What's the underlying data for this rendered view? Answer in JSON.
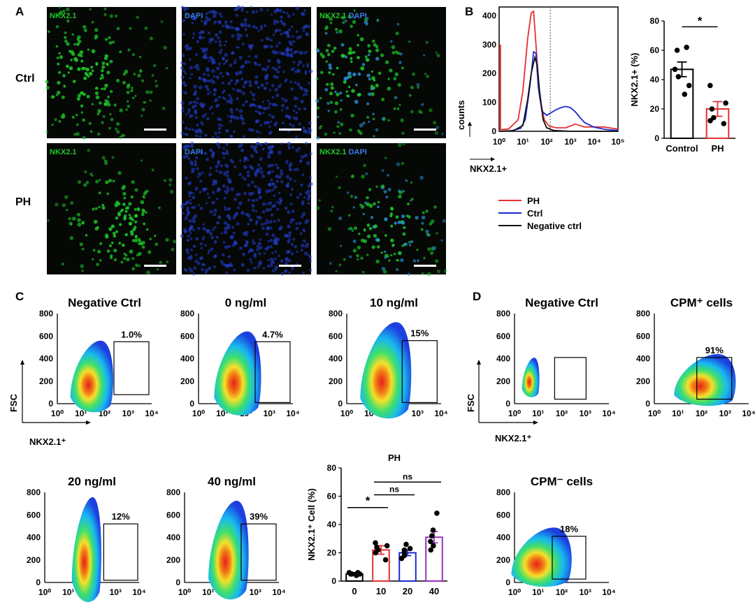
{
  "panel_labels": {
    "A": "A",
    "B": "B",
    "C": "C",
    "D": "D"
  },
  "microscopy": {
    "rows": [
      {
        "label": "Ctrl",
        "channels": [
          "NKX2.1",
          "DAPI",
          "NKX2.1 DAPI"
        ]
      },
      {
        "label": "PH",
        "channels": [
          "NKX2.1",
          "DAPI",
          "NKX2.1 DAPI"
        ]
      }
    ],
    "colors": {
      "nkx": "#1ec82a",
      "dapi": "#2440d8"
    }
  },
  "chart_data": [
    {
      "id": "histogram",
      "type": "line",
      "ylabel": "counts",
      "xlabel": "NKX2.1+",
      "x_ticks": [
        "10⁰",
        "10¹",
        "10²",
        "10³",
        "10⁴",
        "10⁵"
      ],
      "y_ticks": [
        "0",
        "100",
        "200",
        "300",
        "400"
      ],
      "ylim": [
        0,
        430
      ],
      "gate_at": "10²",
      "series": [
        {
          "name": "PH",
          "color": "#e53030",
          "x": [
            0.0,
            0.4,
            0.8,
            1.0,
            1.2,
            1.35,
            1.45,
            1.55,
            1.7,
            1.9,
            2.1,
            2.4,
            2.8,
            3.2,
            3.6,
            4.0,
            4.4,
            4.8,
            5.0
          ],
          "y": [
            5,
            8,
            40,
            140,
            320,
            410,
            415,
            300,
            120,
            40,
            18,
            12,
            12,
            25,
            15,
            15,
            15,
            10,
            8
          ]
        },
        {
          "name": "Ctrl",
          "color": "#1c2ad0",
          "x": [
            0.0,
            0.5,
            0.9,
            1.1,
            1.3,
            1.45,
            1.55,
            1.65,
            1.8,
            2.0,
            2.2,
            2.4,
            2.6,
            2.8,
            3.0,
            3.2,
            3.4,
            3.6,
            4.0,
            4.5,
            5.0
          ],
          "y": [
            0,
            2,
            10,
            40,
            160,
            275,
            270,
            150,
            70,
            55,
            65,
            75,
            82,
            86,
            82,
            68,
            48,
            30,
            14,
            6,
            3
          ]
        },
        {
          "name": "Negative ctrl",
          "color": "#111111",
          "x": [
            0.0,
            0.6,
            1.0,
            1.2,
            1.35,
            1.5,
            1.6,
            1.7,
            1.85,
            2.0,
            2.3,
            3.0,
            5.0
          ],
          "y": [
            0,
            2,
            20,
            110,
            200,
            255,
            230,
            140,
            40,
            12,
            3,
            0,
            0
          ]
        }
      ]
    },
    {
      "id": "bar-b",
      "type": "bar",
      "ylabel": "NKX2.1+ (%)",
      "categories": [
        "Control",
        "PH"
      ],
      "values": [
        47,
        20
      ],
      "errors": [
        5,
        5
      ],
      "points": [
        [
          30,
          36,
          42,
          47,
          60,
          62
        ],
        [
          10,
          12,
          14,
          20,
          24,
          36
        ]
      ],
      "ylim": [
        0,
        80
      ],
      "y_ticks": [
        "0",
        "20",
        "40",
        "60",
        "80"
      ],
      "significance": "*",
      "colors": [
        "#000000",
        "#e53030"
      ]
    },
    {
      "id": "flow-c",
      "type": "scatter",
      "xlabel": "NKX2.1⁺",
      "ylabel": "FSC",
      "x_ticks": [
        "10⁰",
        "10¹",
        "10²",
        "10³",
        "10⁴"
      ],
      "y_ticks": [
        "0",
        "200",
        "400",
        "600",
        "800"
      ],
      "plots": [
        {
          "title": "Negative Ctrl",
          "gate_pct": "1.0%"
        },
        {
          "title": "0 ng/ml",
          "gate_pct": "4.7%"
        },
        {
          "title": "10 ng/ml",
          "gate_pct": "15%"
        },
        {
          "title": "20 ng/ml",
          "gate_pct": "12%"
        },
        {
          "title": "40 ng/ml",
          "gate_pct": "39%"
        }
      ]
    },
    {
      "id": "bar-c",
      "type": "bar",
      "title": "PH",
      "ylabel": "NKX2.1⁺ Cell (%)",
      "categories": [
        "0",
        "10",
        "20",
        "40"
      ],
      "values": [
        5,
        22,
        20,
        31
      ],
      "errors": [
        1,
        3,
        2,
        4
      ],
      "points": [
        [
          4,
          5,
          5,
          6,
          5,
          6
        ],
        [
          15,
          20,
          22,
          24,
          25,
          27
        ],
        [
          16,
          18,
          20,
          22,
          23,
          26
        ],
        [
          22,
          25,
          28,
          32,
          36,
          48
        ]
      ],
      "ylim": [
        0,
        80
      ],
      "y_ticks": [
        "0",
        "20",
        "40",
        "60",
        "80"
      ],
      "colors": [
        "#000000",
        "#e53030",
        "#1c2ad0",
        "#9a2ec0"
      ],
      "brackets": [
        {
          "label": "*",
          "from": 0,
          "to": 1
        },
        {
          "label": "ns",
          "from": 1,
          "to": 2
        },
        {
          "label": "ns",
          "from": 1,
          "to": 3
        }
      ]
    },
    {
      "id": "flow-d",
      "type": "scatter",
      "xlabel": "NKX2.1⁺",
      "ylabel": "FSC",
      "x_ticks": [
        "10⁰",
        "10¹",
        "10²",
        "10³",
        "10⁴"
      ],
      "y_ticks": [
        "0",
        "200",
        "400",
        "600",
        "800"
      ],
      "plots": [
        {
          "title": "Negative Ctrl",
          "gate_pct": ""
        },
        {
          "title": "CPM⁺ cells",
          "gate_pct": "91%"
        },
        {
          "title": "CPM⁻ cells",
          "gate_pct": "18%"
        }
      ]
    }
  ]
}
